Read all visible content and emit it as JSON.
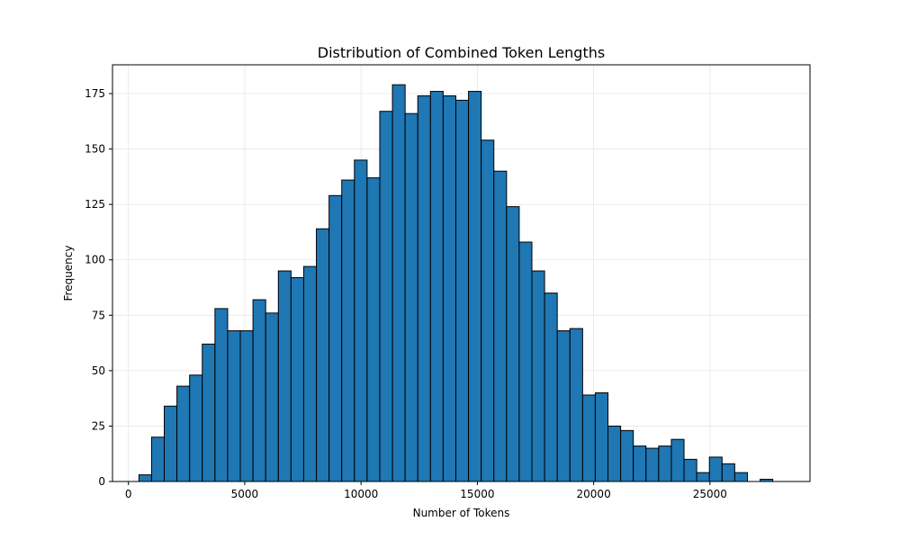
{
  "chart_data": {
    "type": "bar",
    "title": "Distribution of Combined Token Lengths",
    "xlabel": "Number of Tokens",
    "ylabel": "Frequency",
    "xlim": [
      -685,
      29300
    ],
    "ylim": [
      0,
      188
    ],
    "bin_edges": [
      450,
      995,
      1540,
      2085,
      2630,
      3175,
      3720,
      4265,
      4810,
      5355,
      5900,
      6445,
      6990,
      7535,
      8080,
      8625,
      9170,
      9715,
      10260,
      10805,
      11350,
      11895,
      12440,
      12985,
      13530,
      14075,
      14620,
      15165,
      15710,
      16255,
      16800,
      17345,
      17890,
      18435,
      18980,
      19525,
      20070,
      20615,
      21160,
      21705,
      22250,
      22795,
      23340,
      23885,
      24430,
      24975,
      25520,
      26065,
      26610,
      27155,
      27700
    ],
    "values": [
      3,
      20,
      34,
      43,
      48,
      62,
      78,
      68,
      68,
      82,
      76,
      95,
      92,
      97,
      114,
      129,
      136,
      145,
      137,
      167,
      179,
      166,
      174,
      176,
      174,
      172,
      176,
      154,
      140,
      124,
      108,
      95,
      85,
      68,
      69,
      39,
      40,
      25,
      23,
      16,
      15,
      16,
      19,
      10,
      4,
      11,
      8,
      4,
      0,
      1
    ],
    "x_ticks": [
      0,
      5000,
      10000,
      15000,
      20000,
      25000
    ],
    "x_tick_labels": [
      "0",
      "5000",
      "10000",
      "15000",
      "20000",
      "25000"
    ],
    "y_ticks": [
      0,
      25,
      50,
      75,
      100,
      125,
      150,
      175
    ],
    "y_tick_labels": [
      "0",
      "25",
      "50",
      "75",
      "100",
      "125",
      "150",
      "175"
    ],
    "grid": true,
    "colors": {
      "bar_fill": "#1f77b4",
      "bar_edge": "#000000",
      "grid": "#e6e6e6"
    }
  }
}
